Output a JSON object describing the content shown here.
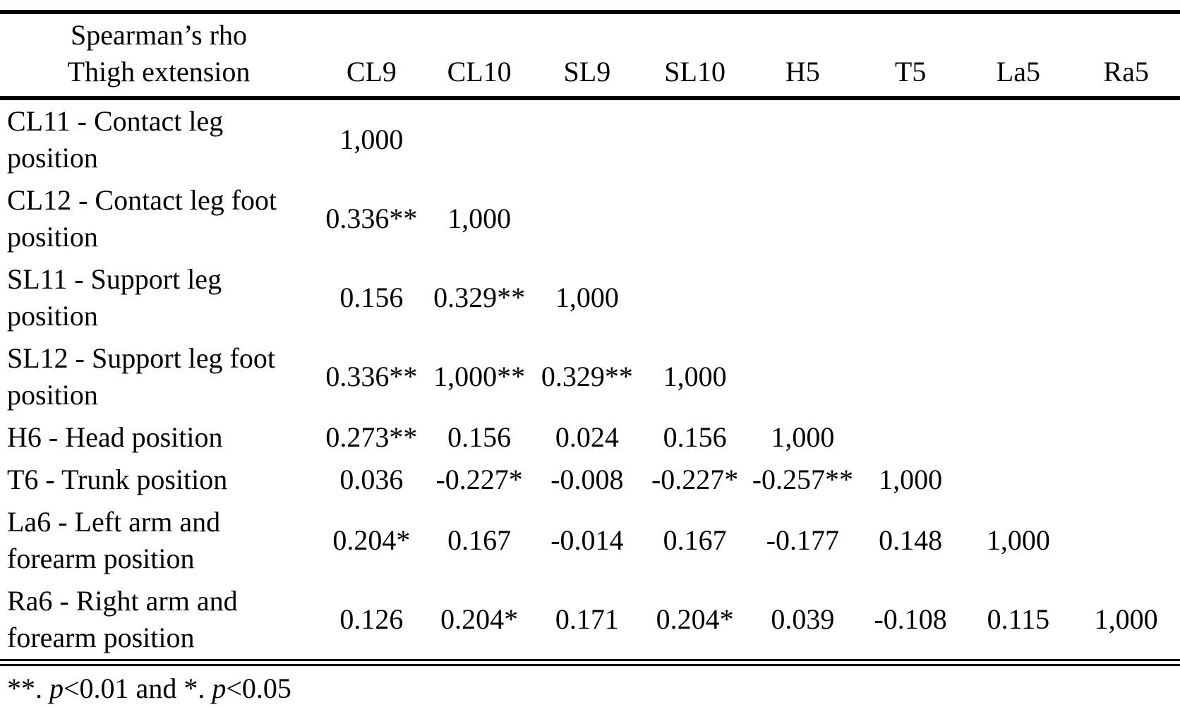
{
  "colors": {
    "text": "#000000",
    "background": "#ffffff"
  },
  "table": {
    "header": {
      "title_line1": "Spearman’s rho",
      "title_line2": "Thigh extension",
      "columns": [
        "CL9",
        "CL10",
        "SL9",
        "SL10",
        "H5",
        "T5",
        "La5",
        "Ra5"
      ]
    },
    "rows": [
      {
        "label": "CL11 - Contact leg position",
        "values": [
          "1,000",
          "",
          "",
          "",
          "",
          "",
          "",
          ""
        ]
      },
      {
        "label": "CL12 - Contact leg foot position",
        "values": [
          "0.336**",
          "1,000",
          "",
          "",
          "",
          "",
          "",
          ""
        ]
      },
      {
        "label": "SL11 - Support leg position",
        "values": [
          "0.156",
          "0.329**",
          "1,000",
          "",
          "",
          "",
          "",
          ""
        ]
      },
      {
        "label": "SL12 - Support leg foot position",
        "values": [
          "0.336**",
          "1,000**",
          "0.329**",
          "1,000",
          "",
          "",
          "",
          ""
        ]
      },
      {
        "label": "H6 - Head position",
        "values": [
          "0.273**",
          "0.156",
          "0.024",
          "0.156",
          "1,000",
          "",
          "",
          ""
        ]
      },
      {
        "label": "T6 - Trunk position",
        "values": [
          "0.036",
          "-0.227*",
          "-0.008",
          "-0.227*",
          "-0.257**",
          "1,000",
          "",
          ""
        ]
      },
      {
        "label": "La6 - Left arm and forearm position",
        "values": [
          "0.204*",
          "0.167",
          "-0.014",
          "0.167",
          "-0.177",
          "0.148",
          "1,000",
          ""
        ]
      },
      {
        "label": "Ra6 - Right arm and forearm position",
        "values": [
          "0.126",
          "0.204*",
          "0.171",
          "0.204*",
          "0.039",
          "-0.108",
          "0.115",
          "1,000"
        ]
      }
    ],
    "footnote_parts": [
      {
        "text": "**. ",
        "italic": false
      },
      {
        "text": "p",
        "italic": true
      },
      {
        "text": "<0.01 and *. ",
        "italic": false
      },
      {
        "text": "p",
        "italic": true
      },
      {
        "text": "<0.05",
        "italic": false
      }
    ]
  }
}
